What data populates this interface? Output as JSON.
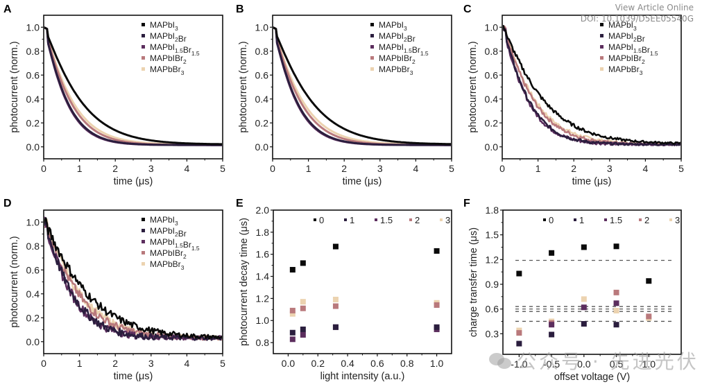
{
  "header": {
    "view_article": "View Article Online",
    "doi": "DOI: 10.1039/D5EE05540G"
  },
  "watermark": {
    "text": "公众号 · 先进光伏",
    "icon": "wechat-icon"
  },
  "colors": {
    "MAPbI3": "#0a0a0a",
    "MAPbI2Br": "#2b1e3e",
    "MAPbI1.5Br1.5": "#5c2e5e",
    "MAPbIBr2": "#b9797c",
    "MAPbBr3": "#ecd3b0",
    "dashed": "#555555"
  },
  "chart_data": [
    {
      "id": "A",
      "type": "line",
      "panel_label": "A",
      "xlabel": "time (μs)",
      "ylabel": "photocurrent (norm.)",
      "xlim": [
        0,
        5
      ],
      "ylim": [
        -0.1,
        1.1
      ],
      "xticks": [
        "0",
        "1",
        "2",
        "3",
        "4",
        "5"
      ],
      "yticks": [
        "0.0",
        "0.2",
        "0.4",
        "0.6",
        "0.8",
        "1.0"
      ],
      "legend": [
        "MAPbI3",
        "MAPbI2Br",
        "MAPbI1.5Br1.5",
        "MAPbIBr2",
        "MAPbBr3"
      ],
      "legend_position": "top-right",
      "series": [
        {
          "name": "MAPbI3",
          "tau": 1.05,
          "floor": 0.02,
          "noise": 0
        },
        {
          "name": "MAPbI2Br",
          "tau": 0.62,
          "floor": 0.015,
          "noise": 0
        },
        {
          "name": "MAPbI1.5Br1.5",
          "tau": 0.6,
          "floor": 0.015,
          "noise": 0
        },
        {
          "name": "MAPbIBr2",
          "tau": 0.72,
          "floor": 0.015,
          "noise": 0
        },
        {
          "name": "MAPbBr3",
          "tau": 0.78,
          "floor": 0.02,
          "noise": 0
        }
      ]
    },
    {
      "id": "B",
      "type": "line",
      "panel_label": "B",
      "xlabel": "time (μs)",
      "ylabel": "photocurrent (norm.)",
      "xlim": [
        0,
        5
      ],
      "ylim": [
        -0.1,
        1.1
      ],
      "xticks": [
        "0",
        "1",
        "2",
        "3",
        "4",
        "5"
      ],
      "yticks": [
        "0.0",
        "0.2",
        "0.4",
        "0.6",
        "0.8",
        "1.0"
      ],
      "legend": [
        "MAPbI3",
        "MAPbI2Br",
        "MAPbI1.5Br1.5",
        "MAPbIBr2",
        "MAPbBr3"
      ],
      "legend_position": "top-right",
      "series": [
        {
          "name": "MAPbI3",
          "tau": 1.1,
          "floor": 0.02,
          "noise": 0
        },
        {
          "name": "MAPbI2Br",
          "tau": 0.64,
          "floor": 0.015,
          "noise": 0
        },
        {
          "name": "MAPbI1.5Br1.5",
          "tau": 0.62,
          "floor": 0.015,
          "noise": 0
        },
        {
          "name": "MAPbIBr2",
          "tau": 0.75,
          "floor": 0.015,
          "noise": 0
        },
        {
          "name": "MAPbBr3",
          "tau": 0.82,
          "floor": 0.02,
          "noise": 0
        }
      ]
    },
    {
      "id": "C",
      "type": "line",
      "panel_label": "C",
      "xlabel": "time (μs)",
      "ylabel": "photocurrent (norm.)",
      "xlim": [
        0,
        5
      ],
      "ylim": [
        -0.1,
        1.1
      ],
      "xticks": [
        "0",
        "1",
        "2",
        "3",
        "4",
        "5"
      ],
      "yticks": [
        "0.0",
        "0.2",
        "0.4",
        "0.6",
        "0.8",
        "1.0"
      ],
      "legend": [
        "MAPbI3",
        "MAPbI2Br",
        "MAPbI1.5Br1.5",
        "MAPbIBr2",
        "MAPbBr3"
      ],
      "legend_position": "top-right",
      "series": [
        {
          "name": "MAPbI3",
          "tau": 1.2,
          "floor": 0.025,
          "noise": 0.008
        },
        {
          "name": "MAPbI2Br",
          "tau": 0.72,
          "floor": 0.02,
          "noise": 0.008
        },
        {
          "name": "MAPbI1.5Br1.5",
          "tau": 0.7,
          "floor": 0.02,
          "noise": 0.008
        },
        {
          "name": "MAPbIBr2",
          "tau": 0.88,
          "floor": 0.02,
          "noise": 0.008
        },
        {
          "name": "MAPbBr3",
          "tau": 0.92,
          "floor": 0.025,
          "noise": 0.008
        }
      ]
    },
    {
      "id": "D",
      "type": "line",
      "panel_label": "D",
      "xlabel": "time (μs)",
      "ylabel": "photocurrent (norm.)",
      "xlim": [
        0,
        5
      ],
      "ylim": [
        -0.1,
        1.1
      ],
      "xticks": [
        "0",
        "1",
        "2",
        "3",
        "4",
        "5"
      ],
      "yticks": [
        "0.0",
        "0.2",
        "0.4",
        "0.6",
        "0.8",
        "1.0"
      ],
      "legend": [
        "MAPbI3",
        "MAPbI2Br",
        "MAPbI1.5Br1.5",
        "MAPbIBr2",
        "MAPbBr3"
      ],
      "legend_position": "top-right",
      "series": [
        {
          "name": "MAPbI3",
          "tau": 1.3,
          "floor": 0.03,
          "noise": 0.018
        },
        {
          "name": "MAPbI2Br",
          "tau": 0.8,
          "floor": 0.03,
          "noise": 0.018
        },
        {
          "name": "MAPbI1.5Br1.5",
          "tau": 0.78,
          "floor": 0.03,
          "noise": 0.018
        },
        {
          "name": "MAPbIBr2",
          "tau": 1.0,
          "floor": 0.03,
          "noise": 0.018
        },
        {
          "name": "MAPbBr3",
          "tau": 1.05,
          "floor": 0.03,
          "noise": 0.018
        }
      ]
    },
    {
      "id": "E",
      "type": "scatter",
      "panel_label": "E",
      "xlabel": "light intensity (a.u.)",
      "ylabel": "photocurrent decay time (μs)",
      "xlim": [
        -0.1,
        1.1
      ],
      "ylim": [
        0.7,
        2.0
      ],
      "xticks": [
        "0.0",
        "0.2",
        "0.4",
        "0.6",
        "0.8",
        "1.0"
      ],
      "xtick_values": [
        0,
        0.2,
        0.4,
        0.6,
        0.8,
        1.0
      ],
      "yticks": [
        "0.8",
        "1.0",
        "1.2",
        "1.4",
        "1.6",
        "1.8",
        "2.0"
      ],
      "ytick_values": [
        0.8,
        1.0,
        1.2,
        1.4,
        1.6,
        1.8,
        2.0
      ],
      "legend": [
        "0",
        "1",
        "1.5",
        "2",
        "3"
      ],
      "legend_position": "top",
      "x": [
        0.03,
        0.1,
        0.32,
        1.0
      ],
      "series": [
        {
          "name": "0",
          "color_key": "MAPbI3",
          "values": [
            1.46,
            1.52,
            1.67,
            1.63
          ]
        },
        {
          "name": "1",
          "color_key": "MAPbI2Br",
          "values": [
            0.89,
            0.92,
            0.94,
            0.94
          ]
        },
        {
          "name": "1.5",
          "color_key": "MAPbI1.5Br1.5",
          "values": [
            0.83,
            0.87,
            0.94,
            0.92
          ]
        },
        {
          "name": "2",
          "color_key": "MAPbIBr2",
          "values": [
            1.09,
            1.11,
            1.13,
            1.14
          ]
        },
        {
          "name": "3",
          "color_key": "MAPbBr3",
          "values": [
            1.06,
            1.17,
            1.19,
            1.16
          ]
        }
      ]
    },
    {
      "id": "F",
      "type": "scatter",
      "panel_label": "F",
      "xlabel": "offset voltage (V)",
      "ylabel": "charge transfer time (μs)",
      "xlim": [
        -1.25,
        1.5
      ],
      "ylim": [
        0.05,
        1.8
      ],
      "xticks": [
        "-1.0",
        "-0.5",
        "0.0",
        "0.5",
        "1.0"
      ],
      "xtick_values": [
        -1.0,
        -0.5,
        0.0,
        0.5,
        1.0
      ],
      "yticks": [
        "0.3",
        "0.6",
        "0.9",
        "1.2",
        "1.5",
        "1.8"
      ],
      "ytick_values": [
        0.3,
        0.6,
        0.9,
        1.2,
        1.5,
        1.8
      ],
      "legend": [
        "0",
        "1",
        "1.5",
        "2",
        "3"
      ],
      "legend_position": "top",
      "x": [
        -1.0,
        -0.5,
        0.0,
        0.5,
        1.0
      ],
      "series": [
        {
          "name": "0",
          "color_key": "MAPbI3",
          "values": [
            1.03,
            1.28,
            1.35,
            1.36,
            0.94
          ]
        },
        {
          "name": "1",
          "color_key": "MAPbI2Br",
          "values": [
            0.18,
            0.29,
            0.42,
            0.41,
            null
          ]
        },
        {
          "name": "1.5",
          "color_key": "MAPbI1.5Br1.5",
          "values": [
            null,
            0.41,
            0.62,
            0.67,
            null
          ]
        },
        {
          "name": "2",
          "color_key": "MAPbIBr2",
          "values": [
            0.31,
            0.43,
            null,
            0.8,
            0.51
          ]
        },
        {
          "name": "3",
          "color_key": "MAPbBr3",
          "values": [
            0.34,
            0.45,
            0.72,
            0.58,
            0.49
          ]
        }
      ],
      "reference_lines": [
        1.19,
        0.63,
        0.6,
        0.57,
        0.45
      ]
    }
  ]
}
